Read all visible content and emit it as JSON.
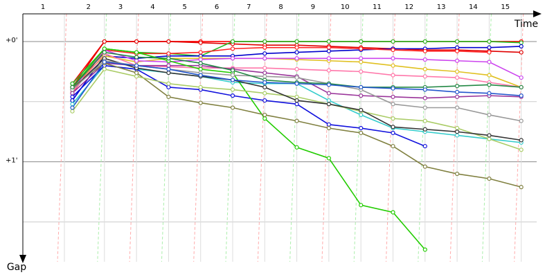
{
  "chart_data": {
    "type": "line",
    "x_title": "Time",
    "y_title": "Gap",
    "categories": [
      "1",
      "2",
      "3",
      "4",
      "5",
      "6",
      "7",
      "8",
      "9",
      "10",
      "11",
      "12",
      "13",
      "14",
      "15"
    ],
    "ylim": [
      -0.23,
      1.9
    ],
    "inverted": true,
    "yticks": [
      {
        "value": 0,
        "label": "+0'"
      },
      {
        "value": 1,
        "label": "+1'"
      }
    ],
    "yminor": [
      0.5,
      1.5
    ],
    "series": [
      {
        "color": "#ff0000",
        "values": [
          0.35,
          0,
          0,
          0,
          0,
          0,
          0,
          0,
          0,
          0,
          0,
          0,
          0,
          0,
          0
        ]
      },
      {
        "color": "#e00000",
        "values": [
          0.38,
          0,
          0,
          0,
          0.01,
          0.02,
          0.03,
          0.03,
          0.04,
          0.05,
          0.06,
          0.07,
          0.07,
          0.08,
          0.09
        ]
      },
      {
        "color": "#22bb22",
        "values": [
          0.35,
          0.06,
          0.09,
          0.1,
          0.12,
          0,
          0,
          0,
          0,
          0,
          0,
          0,
          0,
          0,
          0.01
        ]
      },
      {
        "color": "#0000cc",
        "values": [
          0.49,
          0.12,
          0.14,
          0.12,
          0.12,
          0.12,
          0.1,
          0.09,
          0.08,
          0.07,
          0.06,
          0.06,
          0.05,
          0.05,
          0.04
        ]
      },
      {
        "color": "#ff2222",
        "values": [
          0.43,
          0.07,
          0.1,
          0.1,
          0.09,
          0.06,
          0.05,
          0.05,
          0.05,
          0.06,
          0.07,
          0.08,
          0.08,
          0.09,
          null
        ]
      },
      {
        "color": "#e0c020",
        "values": [
          0.38,
          0.12,
          0.17,
          0.14,
          0.14,
          0.14,
          0.14,
          0.15,
          0.16,
          0.17,
          0.2,
          0.23,
          0.25,
          0.28,
          0.38
        ]
      },
      {
        "color": "#cc44ee",
        "values": [
          0.4,
          0.07,
          0.16,
          0.17,
          0.15,
          0.14,
          0.14,
          0.14,
          0.14,
          0.14,
          0.14,
          0.15,
          0.16,
          0.17,
          0.3
        ]
      },
      {
        "color": "#ff77aa",
        "values": [
          0.42,
          0.1,
          0.2,
          0.21,
          0.22,
          0.22,
          0.22,
          0.23,
          0.24,
          0.25,
          0.28,
          0.29,
          0.3,
          0.34,
          0.38
        ]
      },
      {
        "color": "#33cccc",
        "values": [
          0.52,
          0.2,
          0.23,
          0.26,
          0.29,
          0.34,
          0.35,
          0.35,
          0.49,
          0.61,
          0.72,
          0.75,
          0.78,
          0.81,
          0.84
        ]
      },
      {
        "color": "#993399",
        "values": [
          0.43,
          0.18,
          0.2,
          0.2,
          0.2,
          0.23,
          0.26,
          0.29,
          0.43,
          0.45,
          0.46,
          0.47,
          0.46,
          0.45,
          0.46
        ]
      },
      {
        "color": "#1111dd",
        "values": [
          0.46,
          0.2,
          0.23,
          0.38,
          0.4,
          0.45,
          0.49,
          0.52,
          0.69,
          0.72,
          0.76,
          0.87,
          null,
          null,
          null
        ]
      },
      {
        "color": "#22cc00",
        "values": [
          0.38,
          0.06,
          0.09,
          0.16,
          0.23,
          0.26,
          0.64,
          0.88,
          0.97,
          1.36,
          1.42,
          1.73,
          null,
          null,
          null
        ]
      },
      {
        "color": "#808040",
        "values": [
          0.38,
          0.18,
          0.26,
          0.46,
          0.51,
          0.55,
          0.61,
          0.66,
          0.72,
          0.76,
          0.87,
          1.04,
          1.1,
          1.14,
          1.21
        ]
      },
      {
        "color": "#aacc66",
        "values": [
          0.58,
          0.23,
          0.29,
          0.35,
          0.38,
          0.4,
          0.43,
          0.46,
          0.52,
          0.58,
          0.64,
          0.66,
          0.72,
          0.81,
          0.9
        ]
      },
      {
        "color": "#333333",
        "values": [
          0.4,
          0.14,
          0.22,
          0.26,
          0.29,
          0.32,
          0.38,
          0.49,
          0.52,
          0.57,
          0.71,
          0.73,
          0.75,
          0.78,
          0.82
        ]
      },
      {
        "color": "#999999",
        "values": [
          0.4,
          0.16,
          0.2,
          0.23,
          0.26,
          0.28,
          0.29,
          0.3,
          0.35,
          0.4,
          0.52,
          0.55,
          0.55,
          0.61,
          0.66
        ]
      },
      {
        "color": "#228844",
        "values": [
          0.38,
          0.09,
          0.13,
          0.14,
          0.18,
          0.24,
          0.32,
          0.34,
          0.35,
          0.38,
          0.38,
          0.38,
          0.37,
          0.36,
          0.38
        ]
      },
      {
        "color": "#2255cc",
        "values": [
          0.55,
          0.17,
          0.2,
          0.23,
          0.28,
          0.32,
          0.34,
          0.35,
          0.36,
          0.38,
          0.39,
          0.4,
          0.42,
          0.43,
          0.45
        ]
      }
    ]
  }
}
